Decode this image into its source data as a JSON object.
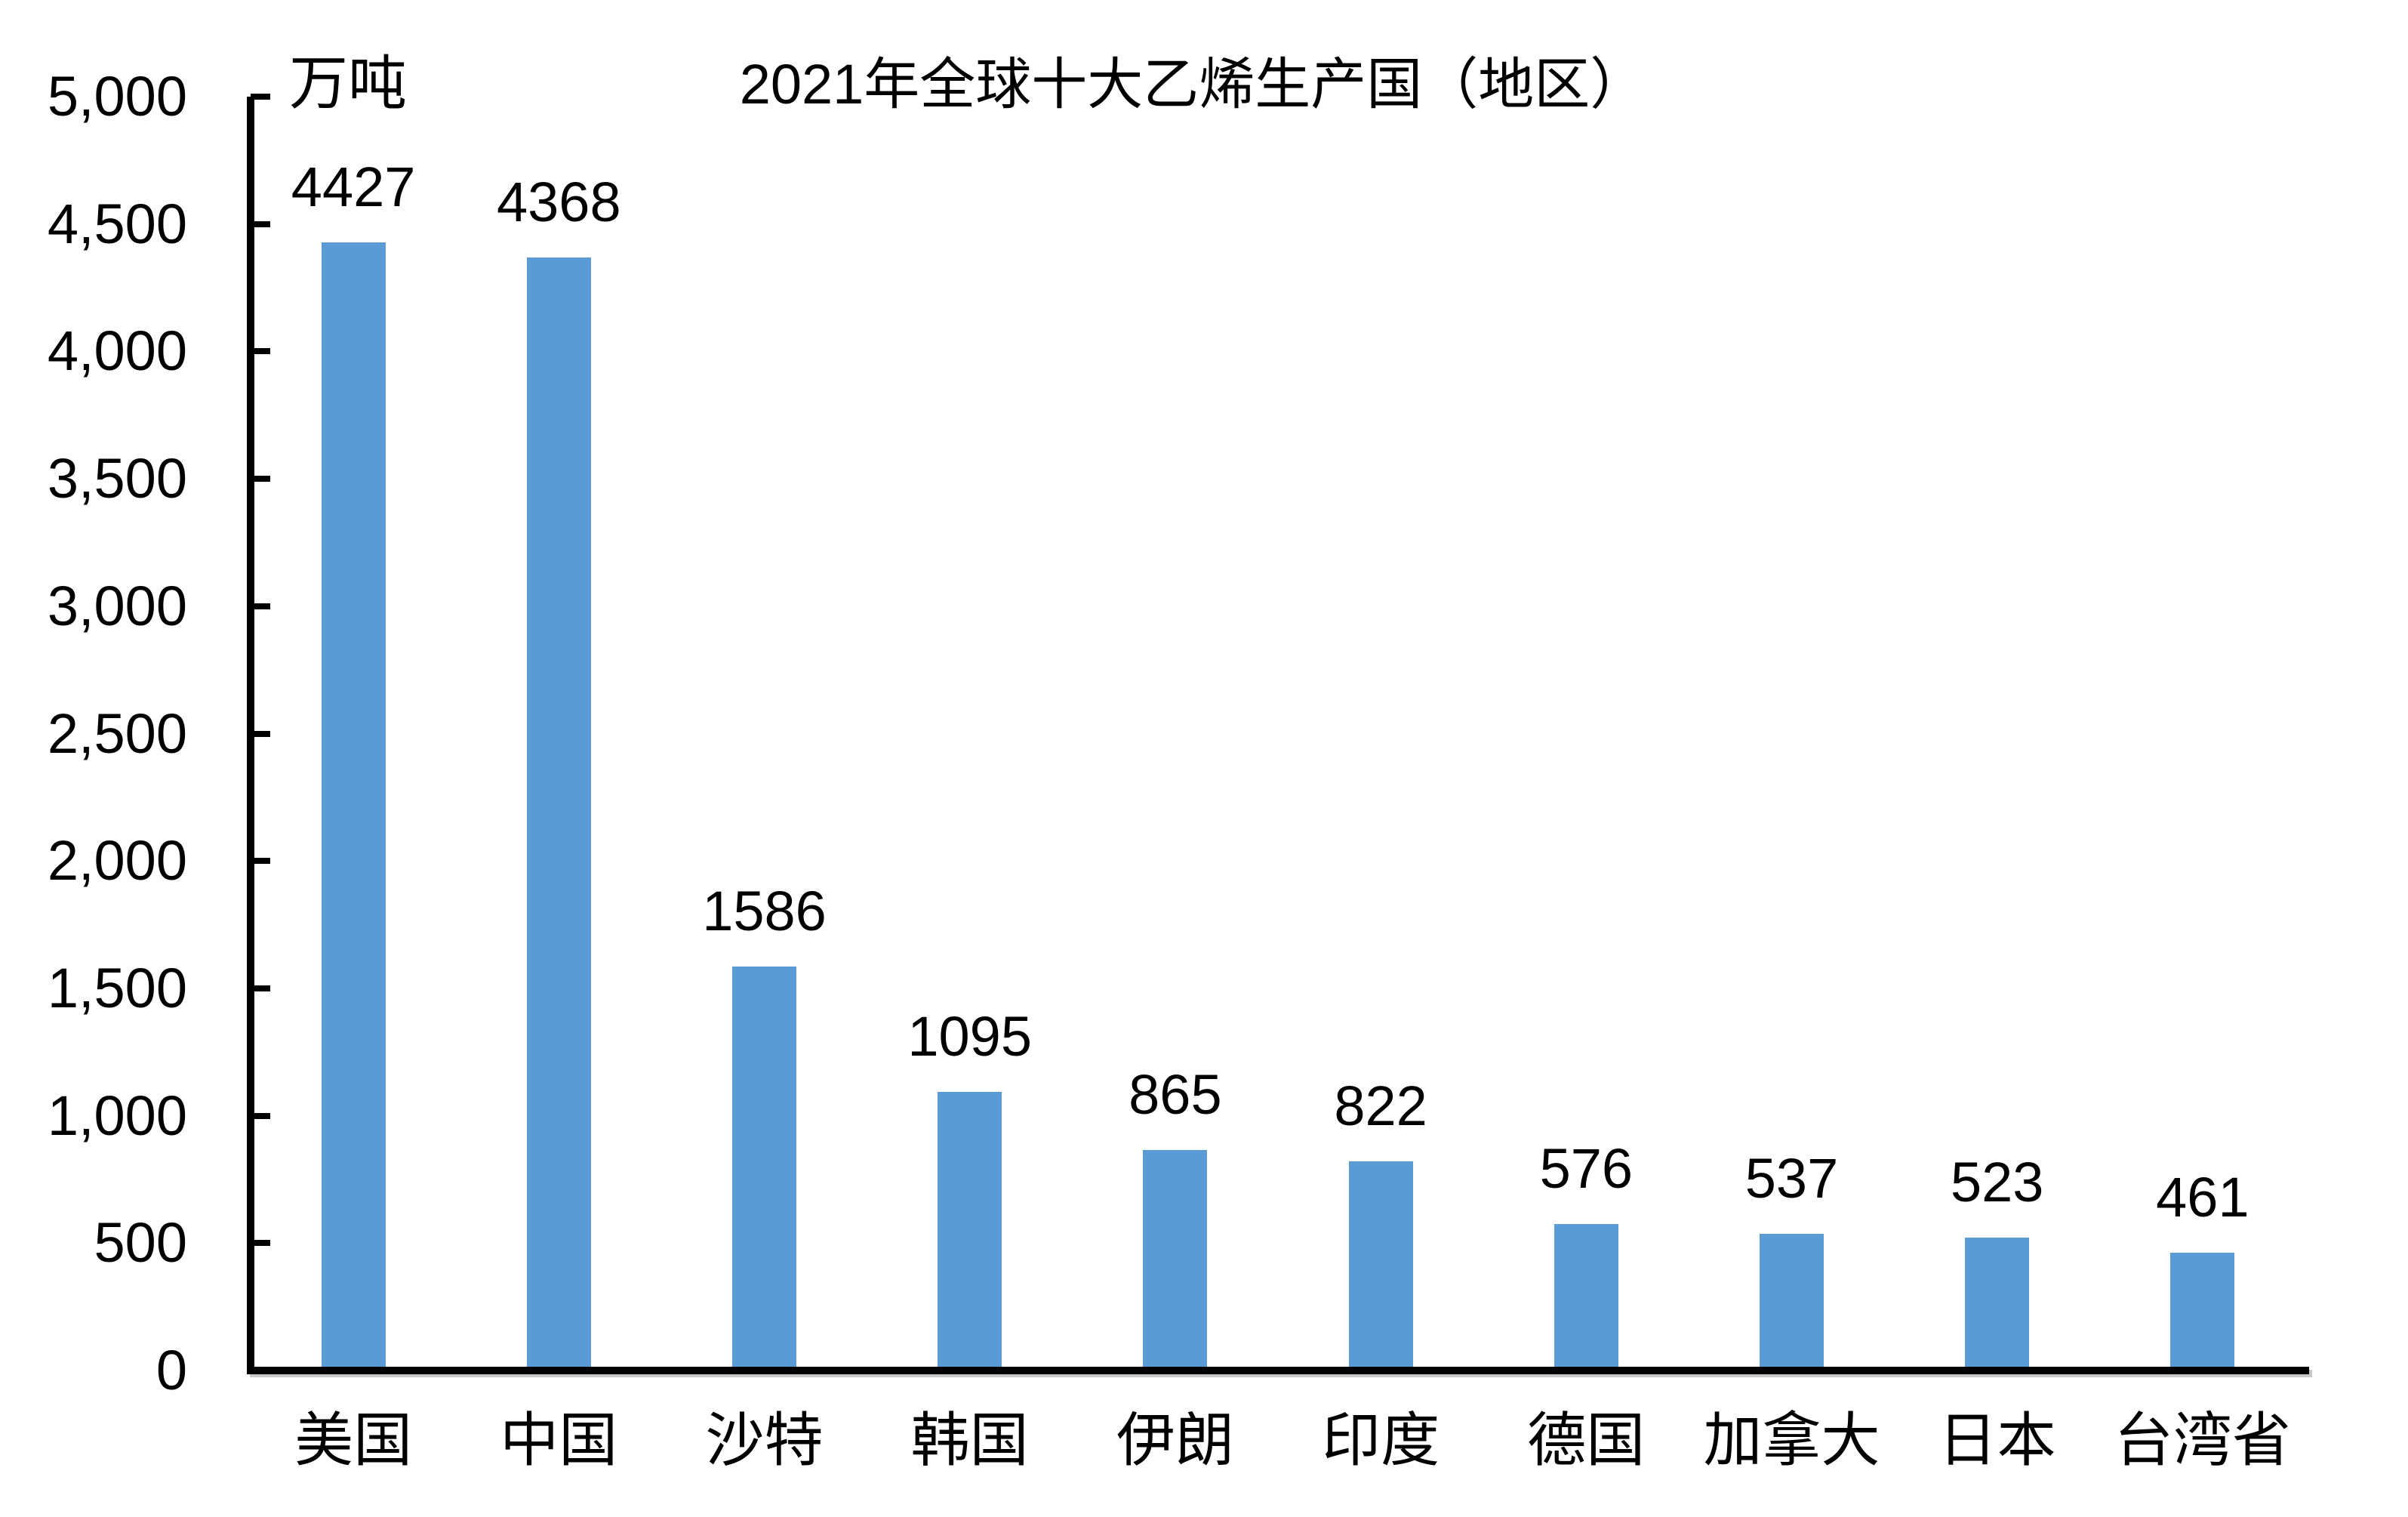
{
  "chart_data": {
    "type": "bar",
    "title": "2021年全球十大乙烯生产国（地区）",
    "unit": "万吨",
    "categories": [
      "美国",
      "中国",
      "沙特",
      "韩国",
      "伊朗",
      "印度",
      "德国",
      "加拿大",
      "日本",
      "台湾省"
    ],
    "values": [
      4427,
      4368,
      1586,
      1095,
      865,
      822,
      576,
      537,
      523,
      461
    ],
    "data_labels": [
      "4427",
      "4368",
      "1586",
      "1095",
      "865",
      "822",
      "576",
      "537",
      "523",
      "461"
    ],
    "xlabel": "",
    "ylabel": "万吨",
    "ylim": [
      0,
      5000
    ],
    "y_tick_step": 500,
    "y_tick_labels": [
      "0",
      "500",
      "1,000",
      "1,500",
      "2,000",
      "2,500",
      "3,000",
      "3,500",
      "4,000",
      "4,500",
      "5,000"
    ],
    "bar_color": "#5B9BD5",
    "axis_color": "#000000",
    "grid": "off",
    "legend": "none"
  }
}
